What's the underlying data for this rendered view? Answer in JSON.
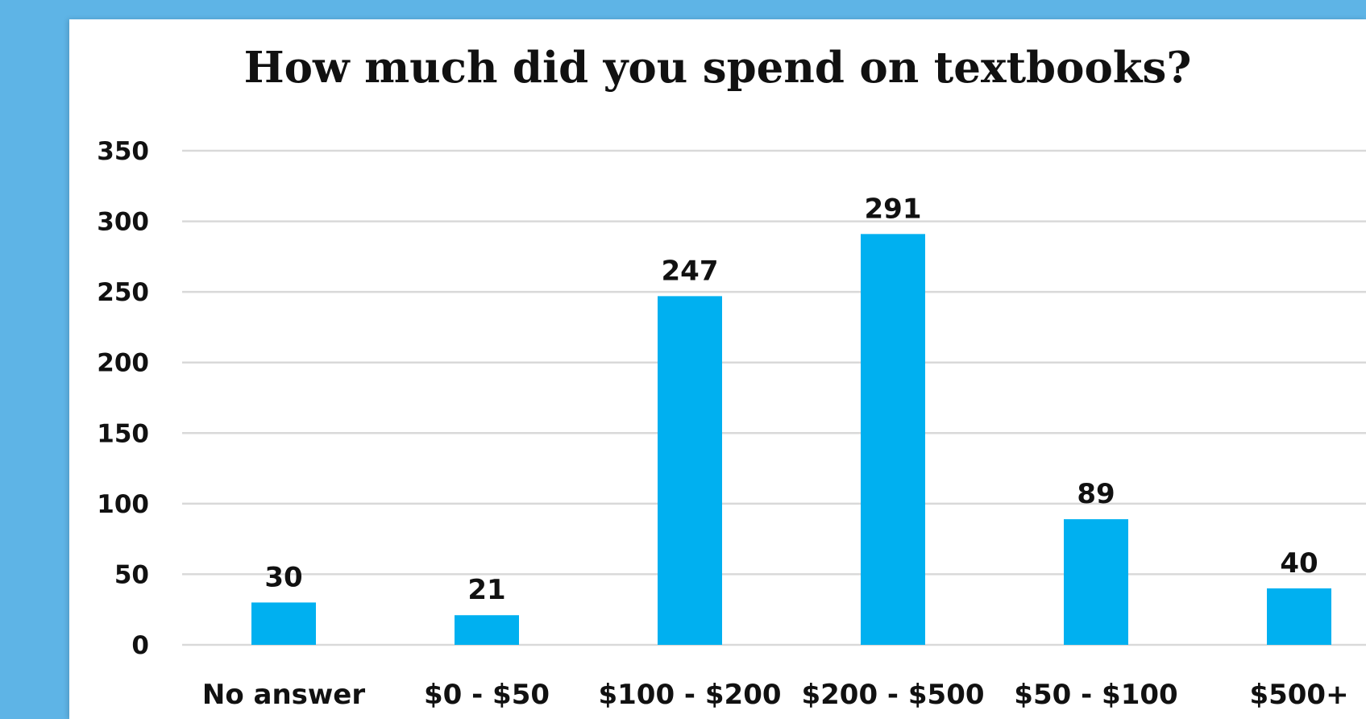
{
  "chart_data": {
    "type": "bar",
    "title": "How much did you spend on textbooks?",
    "categories": [
      "No answer",
      "$0 - $50",
      "$100 - $200",
      "$200 - $500",
      "$50 - $100",
      "$500+"
    ],
    "values": [
      30,
      21,
      247,
      291,
      89,
      40
    ],
    "data_labels": [
      "30",
      "21",
      "247",
      "291",
      "89",
      "40"
    ],
    "xlabel": "",
    "ylabel": "",
    "ylim": [
      0,
      350
    ],
    "yticks": [
      0,
      50,
      100,
      150,
      200,
      250,
      300,
      350
    ],
    "grid": true,
    "legend": "none",
    "bar_color": "#00b0f0",
    "grid_color": "#d9d9d9"
  },
  "colors": {
    "background_border": "#5eb4e6",
    "panel": "#ffffff"
  }
}
